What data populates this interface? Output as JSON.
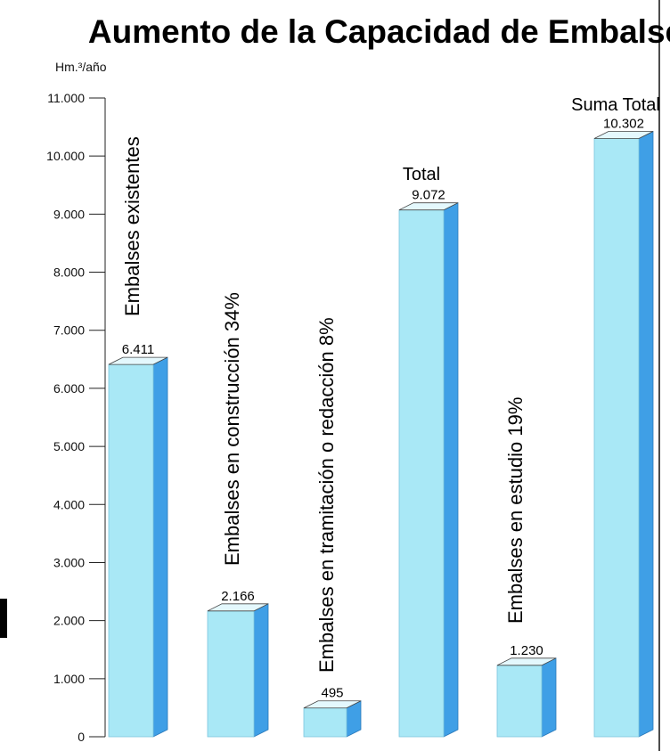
{
  "chart_data": {
    "type": "bar",
    "title": "Aumento de la Capacidad de Embalse",
    "ylabel": "Hm.³/año",
    "ylim": [
      0,
      11000
    ],
    "yticks": [
      0,
      1000,
      2000,
      3000,
      4000,
      5000,
      6000,
      7000,
      8000,
      9000,
      10000,
      11000
    ],
    "ytick_labels": [
      "0",
      "1.000",
      "2.000",
      "3.000",
      "4.000",
      "5.000",
      "6.000",
      "7.000",
      "8.000",
      "9.000",
      "10.000",
      "11.000"
    ],
    "categories": [
      "Embalses existentes",
      "Embalses en construcción 34%",
      "Embalses en tramitación o redacción 8%",
      "Total",
      "Embalses en estudio 19%",
      "Suma Total"
    ],
    "values": [
      6411,
      2166,
      495,
      9072,
      1230,
      10302
    ],
    "value_labels": [
      "6.411",
      "2.166",
      "495",
      "9.072",
      "1.230",
      "10.302"
    ],
    "grid": false,
    "colors": {
      "bar_front": "#a9e8f6",
      "bar_side": "#3f9fe6",
      "bar_top": "#e4f8fd",
      "axis": "#222222",
      "frame": "#111111"
    }
  }
}
